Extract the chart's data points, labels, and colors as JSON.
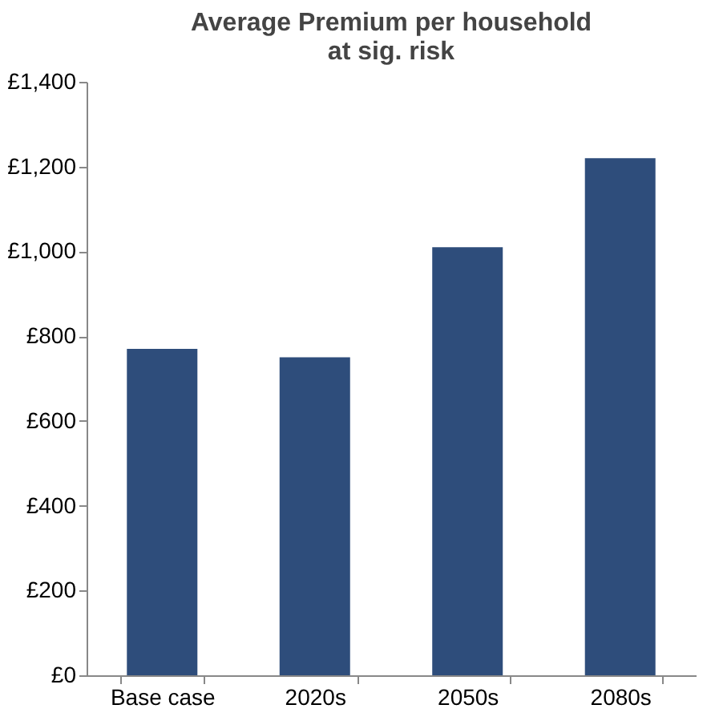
{
  "chart_data": {
    "type": "bar",
    "title": "Average Premium per household at sig. risk",
    "categories": [
      "Base case",
      "2020s",
      "2050s",
      "2080s"
    ],
    "values": [
      770,
      750,
      1010,
      1220
    ],
    "color": "#2e4d7b",
    "ylim": [
      0,
      1400
    ],
    "yticks": [
      {
        "value": 0,
        "label": "£0"
      },
      {
        "value": 200,
        "label": "£200"
      },
      {
        "value": 400,
        "label": "£400"
      },
      {
        "value": 600,
        "label": "£600"
      },
      {
        "value": 800,
        "label": "£800"
      },
      {
        "value": 1000,
        "label": "£1,000"
      },
      {
        "value": 1200,
        "label": "£1,200"
      },
      {
        "value": 1400,
        "label": "£1,400"
      }
    ],
    "grid": false
  }
}
